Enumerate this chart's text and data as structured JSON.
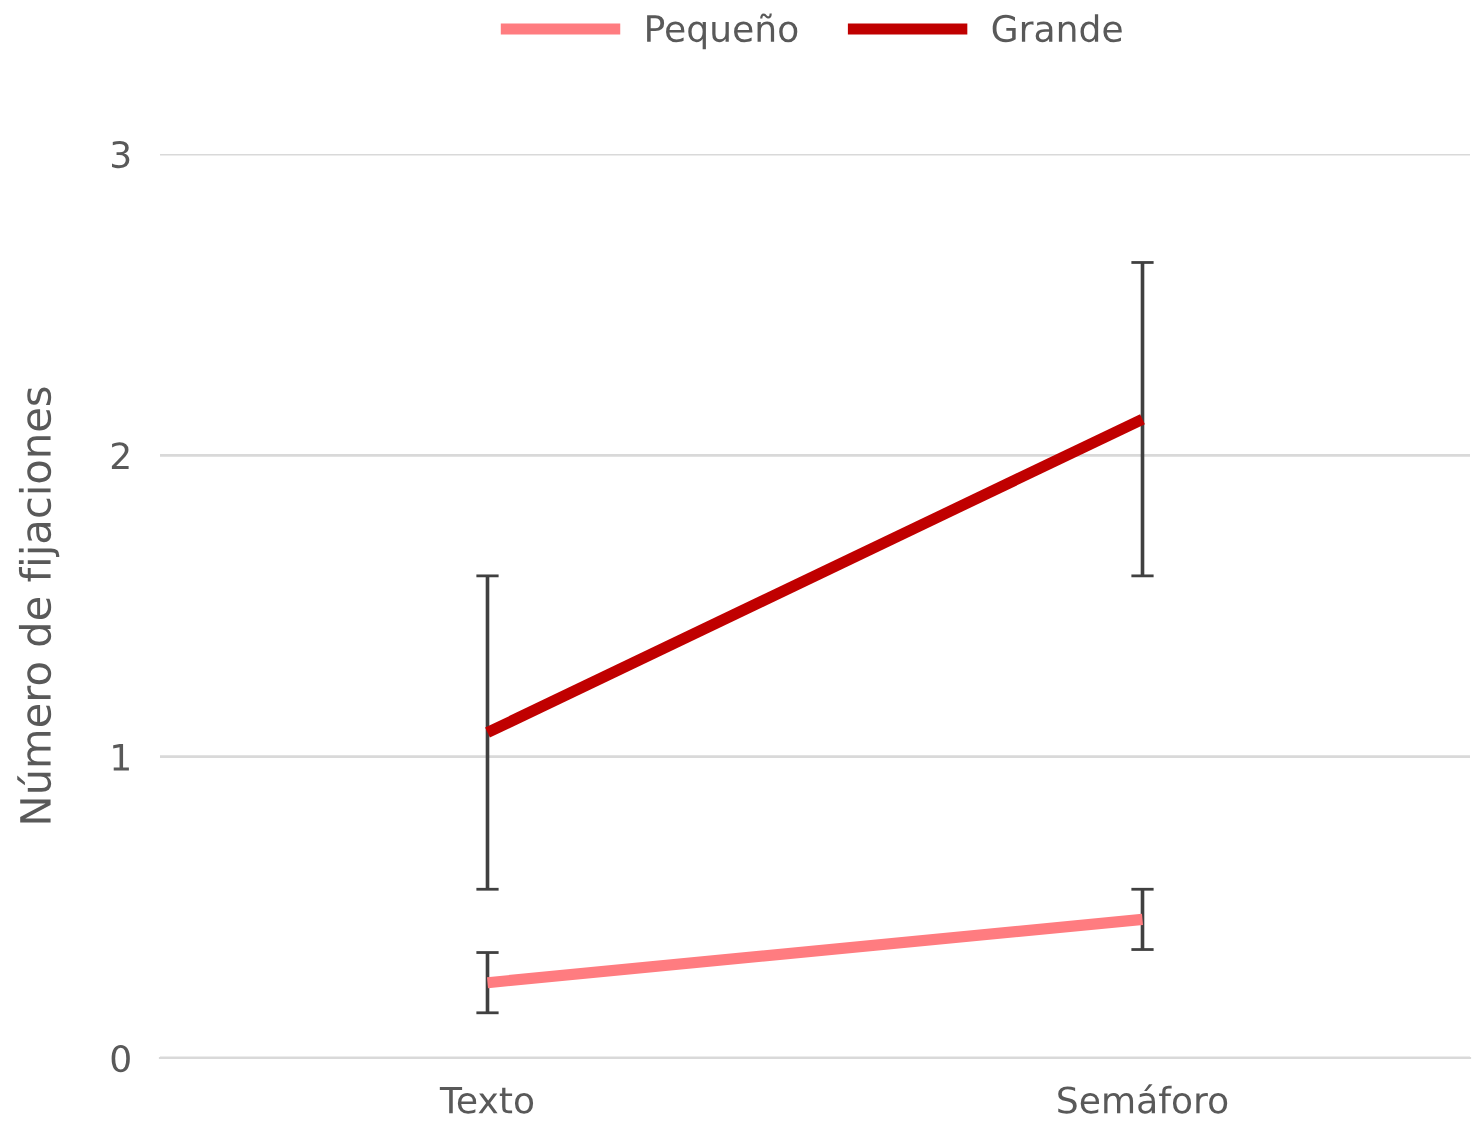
{
  "chart_data": {
    "type": "line",
    "ylabel": "Número de fijaciones",
    "categories": [
      "Texto",
      "Semáforo"
    ],
    "series": [
      {
        "name": "Pequeño",
        "color": "#ff7c80",
        "values": [
          0.25,
          0.46
        ],
        "errors": [
          0.1,
          0.1
        ]
      },
      {
        "name": "Grande",
        "color": "#c00000",
        "values": [
          1.08,
          2.12
        ],
        "errors": [
          0.52,
          0.52
        ]
      }
    ],
    "ylim": [
      0,
      3
    ],
    "yticks": [
      0,
      1,
      2,
      3
    ],
    "grid": "y",
    "legend": "top",
    "marker": "none",
    "line_style": "solid"
  }
}
